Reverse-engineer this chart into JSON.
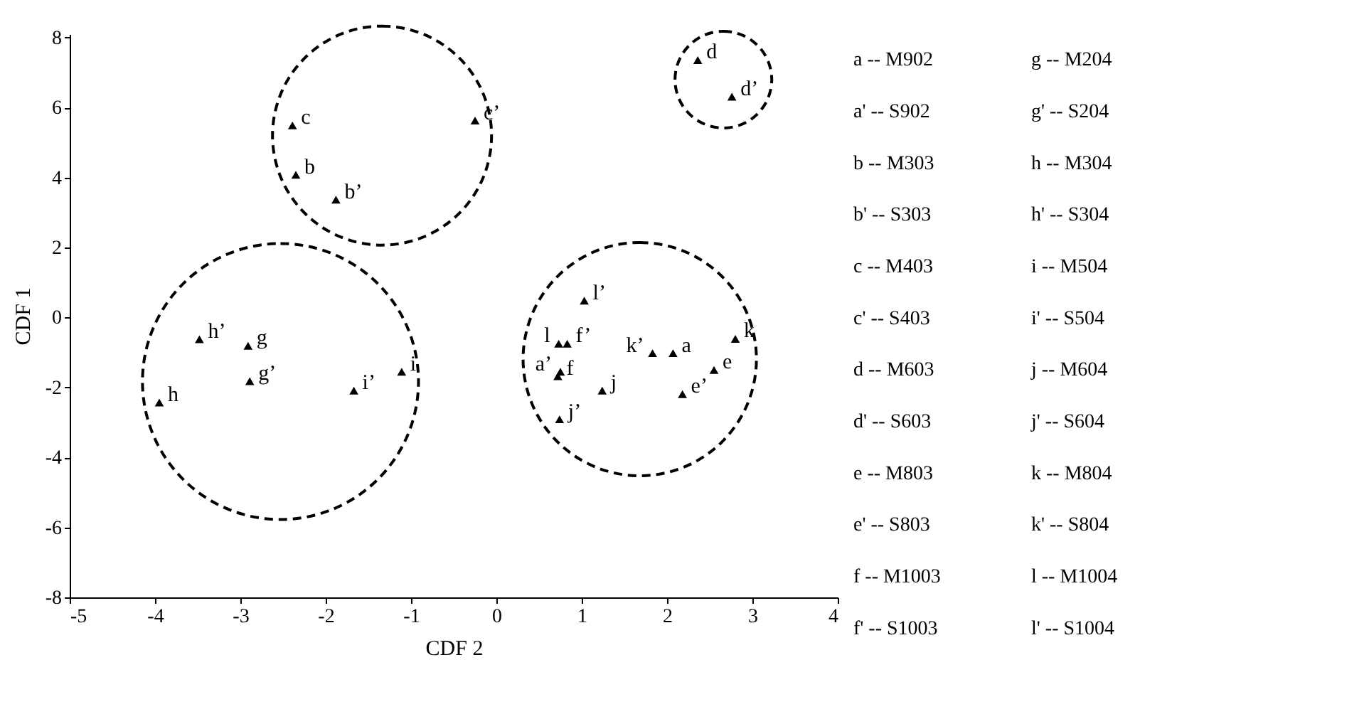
{
  "chart_data": {
    "type": "scatter",
    "xlabel": "CDF 2",
    "ylabel": "CDF 1",
    "xlim": [
      -5,
      4
    ],
    "xticks": [
      -5,
      -4,
      -3,
      -2,
      -1,
      0,
      1,
      2,
      3,
      4
    ],
    "ylim": [
      -8,
      8.1
    ],
    "yticks": [
      -8,
      -6,
      -4,
      -2,
      0,
      2,
      4,
      6,
      8
    ],
    "grid": false,
    "marker": "triangle",
    "series": [
      {
        "color": "#000000",
        "x": [
          -2.39,
          -2.35,
          -1.88,
          -0.25,
          2.36,
          2.76,
          -3.48,
          -2.91,
          -2.89,
          -3.95,
          -1.67,
          -1.11,
          1.03,
          0.73,
          0.83,
          0.72,
          0.75,
          1.24,
          0.74,
          1.83,
          2.07,
          2.8,
          2.55,
          2.18
        ],
        "values": [
          5.49,
          4.08,
          3.37,
          5.63,
          7.36,
          6.31,
          -0.62,
          -0.81,
          -1.82,
          -2.43,
          -2.09,
          -1.55,
          0.48,
          -0.75,
          -0.75,
          -1.68,
          -1.55,
          -2.09,
          -2.91,
          -1.02,
          -1.02,
          -0.61,
          -1.5,
          -2.19
        ]
      }
    ],
    "annotations": [
      {
        "text": "c",
        "x": -2.39,
        "y": 5.49
      },
      {
        "text": "b",
        "x": -2.35,
        "y": 4.08
      },
      {
        "text": "b’",
        "x": -1.88,
        "y": 3.37
      },
      {
        "text": "c’",
        "x": -0.25,
        "y": 5.63
      },
      {
        "text": "d",
        "x": 2.36,
        "y": 7.36
      },
      {
        "text": "d’",
        "x": 2.76,
        "y": 6.31
      },
      {
        "text": "h’",
        "x": -3.48,
        "y": -0.62
      },
      {
        "text": "g",
        "x": -2.91,
        "y": -0.81
      },
      {
        "text": "g’",
        "x": -2.89,
        "y": -1.82
      },
      {
        "text": "h",
        "x": -3.95,
        "y": -2.43
      },
      {
        "text": "i’",
        "x": -1.67,
        "y": -2.09
      },
      {
        "text": "i",
        "x": -1.11,
        "y": -1.55
      },
      {
        "text": "l’",
        "x": 1.03,
        "y": 0.48
      },
      {
        "text": "l",
        "x": 0.73,
        "y": -0.75
      },
      {
        "text": "f’",
        "x": 0.83,
        "y": -0.75
      },
      {
        "text": "f",
        "x": 0.72,
        "y": -1.68
      },
      {
        "text": "a’",
        "x": 0.75,
        "y": -1.55
      },
      {
        "text": "j",
        "x": 1.24,
        "y": -2.09
      },
      {
        "text": "j’",
        "x": 0.74,
        "y": -2.91
      },
      {
        "text": "k’",
        "x": 1.83,
        "y": -1.02
      },
      {
        "text": "a",
        "x": 2.07,
        "y": -1.02
      },
      {
        "text": "k",
        "x": 2.8,
        "y": -0.61
      },
      {
        "text": "e",
        "x": 2.55,
        "y": -1.5
      },
      {
        "text": "e’",
        "x": 2.18,
        "y": -2.19
      },
      "a --     M902",
      "a' --    S902",
      "b --     M303",
      "b' --    S303",
      "c --     M403",
      "c' --    S403",
      "d --     M603",
      "d' --    S603",
      "e --     M803",
      "e' --    S803",
      "f --     M1003",
      "f' --    S1003",
      "g --     M204",
      "g' --    S204",
      "h --     M304",
      "h' --    S304",
      "i --     M504",
      "i' --    S504",
      "j --     M604",
      "j' --    S604",
      "k --     M804",
      "k' --    S804",
      "l --     M1004",
      "l' --    S1004"
    ]
  }
}
